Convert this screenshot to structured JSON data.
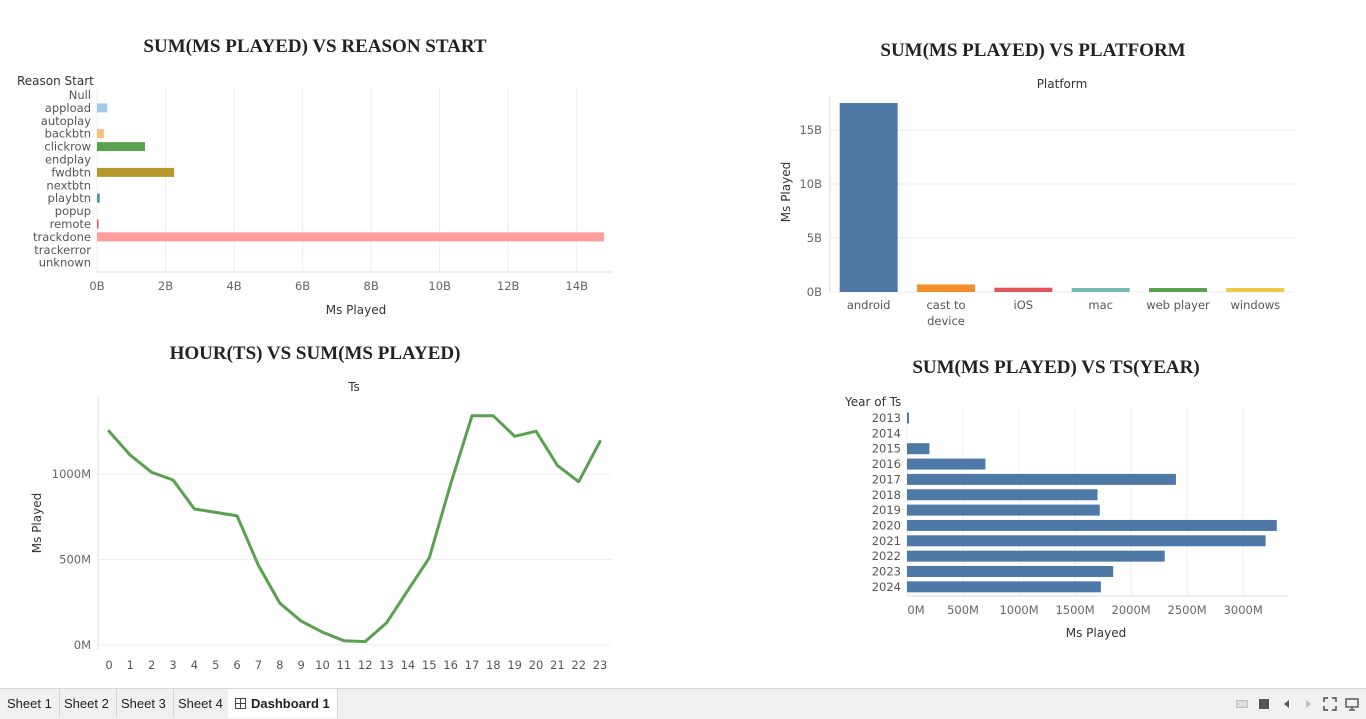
{
  "charts": {
    "reason": {
      "title": "SUM(MS PLAYED) VS REASON START",
      "header": "Reason Start",
      "xlabel": "Ms Played"
    },
    "platform": {
      "title": "SUM(MS PLAYED) VS PLATFORM",
      "header": "Platform",
      "ylabel": "Ms Played"
    },
    "hour": {
      "title": "HOUR(TS) VS SUM(MS PLAYED)",
      "header": "Ts",
      "ylabel": "Ms Played"
    },
    "year": {
      "title": "SUM(MS PLAYED) VS TS(YEAR)",
      "header": "Year of Ts",
      "xlabel": "Ms Played"
    }
  },
  "tabs": [
    {
      "label": "Sheet 1"
    },
    {
      "label": "Sheet 2"
    },
    {
      "label": "Sheet 3"
    },
    {
      "label": "Sheet 4"
    },
    {
      "label": "Dashboard 1",
      "active": true
    }
  ],
  "controls": [
    "device-preview-icon",
    "presentation-icon",
    "prev-icon",
    "next-icon",
    "fullscreen-icon",
    "share-icon"
  ],
  "chart_data": [
    {
      "id": "reason",
      "type": "bar",
      "orientation": "horizontal",
      "title": "SUM(MS PLAYED) VS REASON START",
      "xlabel": "Ms Played",
      "ylabel": "Reason Start",
      "categories": [
        "Null",
        "appload",
        "autoplay",
        "backbtn",
        "clickrow",
        "endplay",
        "fwdbtn",
        "nextbtn",
        "playbtn",
        "popup",
        "remote",
        "trackdone",
        "trackerror",
        "unknown"
      ],
      "values": [
        0,
        0.3,
        0,
        0.2,
        1.4,
        0,
        2.25,
        0,
        0.08,
        0,
        0.02,
        14.8,
        0,
        0
      ],
      "value_unit": "B",
      "colors": [
        "#4e79a7",
        "#a0cbe8",
        "#f28e2b",
        "#ffbe7d",
        "#59a14f",
        "#8cd17d",
        "#b6992d",
        "#f1ce63",
        "#499894",
        "#86bcb6",
        "#e15759",
        "#ff9d9a",
        "#79706e",
        "#bab0ac"
      ],
      "xlim": [
        0,
        15
      ],
      "ticks": [
        0,
        2,
        4,
        6,
        8,
        10,
        12,
        14
      ],
      "tick_labels": [
        "0B",
        "2B",
        "4B",
        "6B",
        "8B",
        "10B",
        "12B",
        "14B"
      ],
      "grid": true
    },
    {
      "id": "platform",
      "type": "bar",
      "orientation": "vertical",
      "title": "SUM(MS PLAYED) VS PLATFORM",
      "xlabel": "Platform",
      "ylabel": "Ms Played",
      "categories": [
        [
          "android"
        ],
        [
          "cast to",
          "device"
        ],
        [
          "iOS"
        ],
        [
          "mac"
        ],
        [
          "web player"
        ],
        [
          "windows"
        ]
      ],
      "values": [
        17.5,
        0.7,
        0.4,
        0.2,
        0.02,
        0.3
      ],
      "value_unit": "B",
      "colors": [
        "#4e79a7",
        "#f28e2b",
        "#e15759",
        "#76b7b2",
        "#59a14f",
        "#edc948"
      ],
      "ylim": [
        0,
        17.5
      ],
      "ticks": [
        0,
        5,
        10,
        15
      ],
      "tick_labels": [
        "0B",
        "5B",
        "10B",
        "15B"
      ],
      "grid": true
    },
    {
      "id": "hour",
      "type": "line",
      "title": "HOUR(TS) VS SUM(MS PLAYED)",
      "xlabel": "Ts",
      "ylabel": "Ms Played",
      "x": [
        0,
        1,
        2,
        3,
        4,
        5,
        6,
        7,
        8,
        9,
        10,
        11,
        12,
        13,
        14,
        15,
        16,
        17,
        18,
        19,
        20,
        21,
        22,
        23
      ],
      "values": [
        1250,
        1110,
        1010,
        965,
        795,
        775,
        755,
        465,
        245,
        140,
        75,
        25,
        20,
        130,
        320,
        510,
        940,
        1340,
        1340,
        1220,
        1250,
        1050,
        955,
        1190
      ],
      "value_unit": "M",
      "color": "#59a14f",
      "ylim": [
        0,
        1450
      ],
      "ticks": [
        0,
        500,
        1000
      ],
      "tick_labels": [
        "0M",
        "500M",
        "1000M"
      ],
      "grid": true
    },
    {
      "id": "year",
      "type": "bar",
      "orientation": "horizontal",
      "title": "SUM(MS PLAYED) VS TS(YEAR)",
      "xlabel": "Ms Played",
      "ylabel": "Year of Ts",
      "categories": [
        "2013",
        "2014",
        "2015",
        "2016",
        "2017",
        "2018",
        "2019",
        "2020",
        "2021",
        "2022",
        "2023",
        "2024"
      ],
      "values": [
        10,
        0,
        200,
        700,
        2400,
        1700,
        1720,
        3300,
        3200,
        2300,
        1840,
        1730
      ],
      "value_unit": "M",
      "color": "#4e79a7",
      "xlim": [
        0,
        3400
      ],
      "ticks": [
        0,
        500,
        1000,
        1500,
        2000,
        2500,
        3000
      ],
      "tick_labels": [
        "0M",
        "500M",
        "1000M",
        "1500M",
        "2000M",
        "2500M",
        "3000M"
      ],
      "grid": true
    }
  ]
}
